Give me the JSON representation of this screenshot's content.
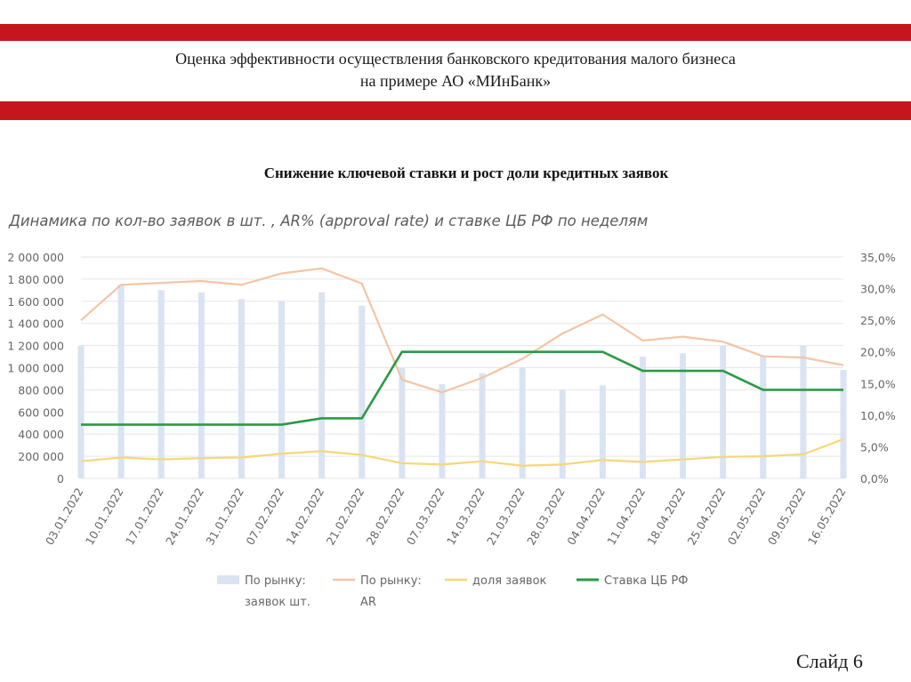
{
  "header": {
    "title_line1": "Оценка эффективности осуществления банковского кредитования малого бизнеса",
    "title_line2": "на примере АО «МИнБанк»"
  },
  "slide": {
    "subtitle": "Снижение ключевой ставки и рост доли кредитных заявок",
    "number_label": "Слайд 6"
  },
  "chart_data": {
    "type": "bar",
    "title": "Динамика по кол-во заявок в шт. , AR% (approval rate) и ставке ЦБ РФ по неделям",
    "categories": [
      "03.01.2022",
      "10.01.2022",
      "17.01.2022",
      "24.01.2022",
      "31.01.2022",
      "07.02.2022",
      "14.02.2022",
      "21.02.2022",
      "28.02.2022",
      "07.03.2022",
      "14.03.2022",
      "21.03.2022",
      "28.03.2022",
      "04.04.2022",
      "11.04.2022",
      "18.04.2022",
      "25.04.2022",
      "02.05.2022",
      "09.05.2022",
      "16.05.2022"
    ],
    "y_left": {
      "ylim": [
        0,
        2000000
      ],
      "ticks": [
        0,
        200000,
        400000,
        600000,
        800000,
        1000000,
        1200000,
        1400000,
        1600000,
        1800000,
        2000000
      ],
      "tick_labels": [
        "0",
        "200 000",
        "400 000",
        "600 000",
        "800 000",
        "1 000 000",
        "1 200 000",
        "1 400 000",
        "1 600 000",
        "1 800 000",
        "2 000 000"
      ]
    },
    "y_right": {
      "ylim": [
        0,
        35
      ],
      "ticks": [
        0,
        5,
        10,
        15,
        20,
        25,
        30,
        35
      ],
      "tick_labels": [
        "0,0%",
        "5,0%",
        "10,0%",
        "15,0%",
        "20,0%",
        "25,0%",
        "30,0%",
        "35,0%"
      ]
    },
    "series": [
      {
        "name": "По рынку: заявок шт.",
        "legend_lines": [
          "По рынку:",
          "заявок шт."
        ],
        "kind": "bar",
        "axis": "left",
        "color": "#d9e3f2",
        "values": [
          1200000,
          1750000,
          1700000,
          1680000,
          1620000,
          1600000,
          1680000,
          1560000,
          1000000,
          850000,
          950000,
          1000000,
          800000,
          840000,
          1100000,
          1130000,
          1200000,
          1100000,
          1200000,
          980000
        ]
      },
      {
        "name": "По рынку: AR",
        "legend_lines": [
          "По рынку:",
          "AR"
        ],
        "kind": "line",
        "axis": "right",
        "color": "#f3c4a4",
        "values": [
          25.0,
          30.6,
          30.9,
          31.2,
          30.6,
          32.4,
          33.2,
          30.8,
          15.6,
          13.6,
          15.9,
          18.9,
          22.9,
          25.9,
          21.8,
          22.4,
          21.6,
          19.3,
          19.1,
          17.9
        ]
      },
      {
        "name": "доля заявок",
        "legend_lines": [
          "доля заявок"
        ],
        "kind": "line",
        "axis": "right",
        "color": "#f5d77a",
        "values": [
          2.7,
          3.3,
          3.0,
          3.2,
          3.3,
          3.9,
          4.3,
          3.7,
          2.4,
          2.2,
          2.7,
          2.0,
          2.2,
          2.9,
          2.6,
          3.0,
          3.4,
          3.5,
          3.8,
          6.2
        ]
      },
      {
        "name": "Ставка ЦБ РФ",
        "legend_lines": [
          "Ставка ЦБ РФ"
        ],
        "kind": "line",
        "axis": "right",
        "color": "#2a9a46",
        "values": [
          8.5,
          8.5,
          8.5,
          8.5,
          8.5,
          8.5,
          9.5,
          9.5,
          20,
          20,
          20,
          20,
          20,
          20,
          17,
          17,
          17,
          14,
          14,
          14
        ]
      }
    ],
    "grid": true,
    "legend_position": "bottom"
  }
}
